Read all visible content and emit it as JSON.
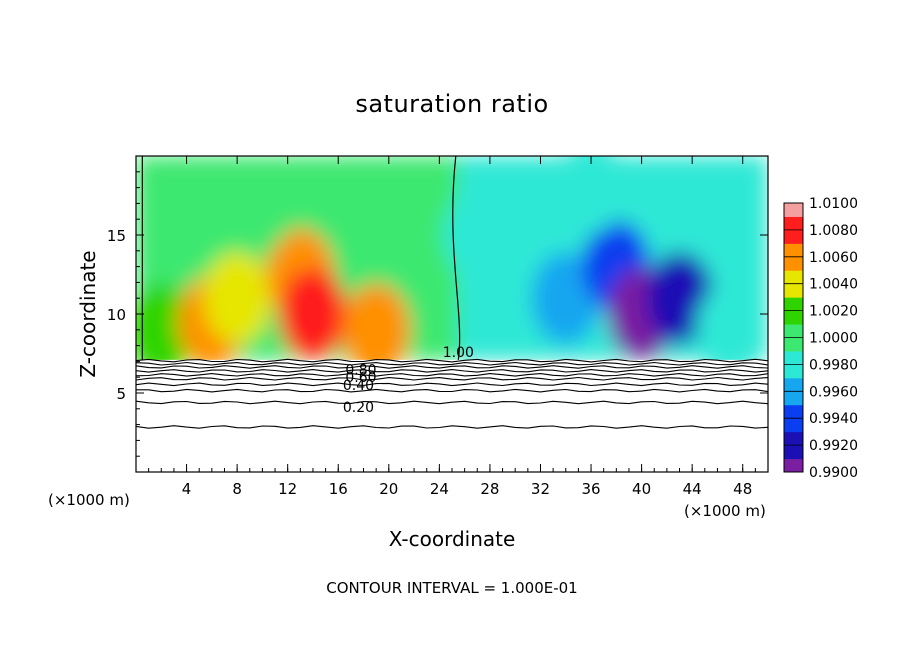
{
  "chart_data": {
    "type": "heatmap",
    "title": "saturation ratio",
    "xlabel": "X-coordinate",
    "ylabel": "Z-coordinate",
    "x_unit_left": "(×1000 m)",
    "x_unit_right": "(×1000 m)",
    "footer": "CONTOUR INTERVAL = 1.000E-01",
    "xlim": [
      0,
      50
    ],
    "ylim": [
      0,
      20
    ],
    "x_ticks": [
      4,
      8,
      12,
      16,
      20,
      24,
      28,
      32,
      36,
      40,
      44,
      48
    ],
    "y_ticks": [
      5,
      10,
      15
    ],
    "colorbar": {
      "levels": [
        0.99,
        0.992,
        0.994,
        0.996,
        0.998,
        1.0,
        1.002,
        1.004,
        1.006,
        1.008,
        1.01
      ],
      "labels": [
        "0.9900",
        "0.9920",
        "0.9940",
        "0.9960",
        "0.9980",
        "1.0000",
        "1.0020",
        "1.0040",
        "1.0060",
        "1.0080",
        "1.0100"
      ],
      "colors": [
        "#7a1fa2",
        "#1a10b4",
        "#0a3ef0",
        "#17a6f0",
        "#2ee8d6",
        "#3ce870",
        "#2fd400",
        "#e6e600",
        "#ff9000",
        "#ff1e1e",
        "#f4a0a0"
      ]
    },
    "cloud_base_z": 7.1,
    "field_samples": [
      {
        "x": 2,
        "z": 9,
        "value": 1.003
      },
      {
        "x": 6,
        "z": 9.5,
        "value": 1.008
      },
      {
        "x": 8,
        "z": 11,
        "value": 1.005
      },
      {
        "x": 13,
        "z": 12.5,
        "value": 1.008
      },
      {
        "x": 14,
        "z": 10,
        "value": 1.01
      },
      {
        "x": 19,
        "z": 9,
        "value": 1.007
      },
      {
        "x": 10,
        "z": 17,
        "value": 1.001
      },
      {
        "x": 27,
        "z": 15,
        "value": 0.9995
      },
      {
        "x": 34,
        "z": 11,
        "value": 0.997
      },
      {
        "x": 38,
        "z": 13,
        "value": 0.995
      },
      {
        "x": 40,
        "z": 10,
        "value": 0.991
      },
      {
        "x": 43,
        "z": 11,
        "value": 0.9925
      },
      {
        "x": 47,
        "z": 9,
        "value": 0.9985
      },
      {
        "x": 36,
        "z": 18,
        "value": 0.9985
      }
    ],
    "contour_labels": [
      {
        "text": "1.00",
        "x": 25.5,
        "z": 7.6
      },
      {
        "text": "0.80",
        "x": 17.8,
        "z": 6.5
      },
      {
        "text": "0.60",
        "x": 17.8,
        "z": 6.0
      },
      {
        "text": "0.40",
        "x": 17.6,
        "z": 5.5
      },
      {
        "text": "0.20",
        "x": 17.6,
        "z": 4.1
      }
    ],
    "contour_levels_below_cloud": [
      7.05,
      6.85,
      6.65,
      6.4,
      6.15,
      5.9,
      5.55,
      5.15,
      4.4,
      2.85
    ]
  }
}
